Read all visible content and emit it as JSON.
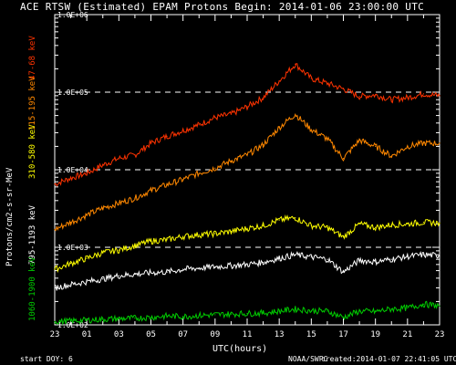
{
  "header": {
    "title": "ACE RTSW (Estimated) EPAM Protons    Begin: 2014-01-06 23:00:00 UTC"
  },
  "footer": {
    "start_doy": "start DOY:    6",
    "source": "NOAA/SWPC",
    "created": "created:2014-01-07 22:41:05 UTC"
  },
  "chart_data": {
    "type": "line",
    "ylabel": "Protons/cm2-s-sr-MeV",
    "xlabel": "UTC(hours)",
    "ylim": [
      100,
      1000000
    ],
    "yscale": "log",
    "yticks": [
      {
        "value": 100,
        "label": "1.0E+02"
      },
      {
        "value": 1000,
        "label": "1.0E+03"
      },
      {
        "value": 10000,
        "label": "1.0E+04"
      },
      {
        "value": 100000,
        "label": "1.0E+05"
      },
      {
        "value": 1000000,
        "label": "1.0E+06"
      }
    ],
    "xticks": [
      "23",
      "01",
      "03",
      "05",
      "07",
      "09",
      "11",
      "13",
      "15",
      "17",
      "19",
      "21",
      "23"
    ],
    "dashed_reference_levels": [
      100000,
      10000,
      1000
    ],
    "series": [
      {
        "name": "47-68 keV",
        "color": "#ff3300",
        "x": [
          0,
          1,
          2,
          3,
          4,
          5,
          6,
          7,
          8,
          9,
          10,
          11,
          12,
          13,
          14,
          15,
          16,
          17,
          18,
          19,
          20,
          21,
          22,
          23,
          24
        ],
        "values": [
          6500,
          7800,
          9000,
          11500,
          14000,
          15500,
          22000,
          27000,
          32000,
          38000,
          47000,
          52000,
          65000,
          85000,
          140000,
          230000,
          150000,
          130000,
          110000,
          88000,
          92000,
          80000,
          85000,
          95000,
          90000
        ]
      },
      {
        "name": "115-195 keV",
        "color": "#ff8800",
        "x": [
          0,
          1,
          2,
          3,
          4,
          5,
          6,
          7,
          8,
          9,
          10,
          11,
          12,
          13,
          14,
          15,
          16,
          17,
          18,
          19,
          20,
          21,
          22,
          23,
          24
        ],
        "values": [
          1700,
          2100,
          2600,
          3200,
          3700,
          4300,
          5400,
          6400,
          7500,
          9000,
          10500,
          13000,
          15500,
          21000,
          35000,
          52000,
          33000,
          25000,
          14000,
          24000,
          20000,
          15000,
          20000,
          22000,
          22000
        ]
      },
      {
        "name": "310-580 keV",
        "color": "#ffff00",
        "x": [
          0,
          1,
          2,
          3,
          4,
          5,
          6,
          7,
          8,
          9,
          10,
          11,
          12,
          13,
          14,
          15,
          16,
          17,
          18,
          19,
          20,
          21,
          22,
          23,
          24
        ],
        "values": [
          520,
          620,
          720,
          850,
          920,
          1050,
          1200,
          1250,
          1380,
          1450,
          1500,
          1600,
          1750,
          1900,
          2250,
          2400,
          1900,
          1800,
          1350,
          2000,
          1800,
          1950,
          2000,
          2100,
          2050
        ]
      },
      {
        "name": "795-1193 keV",
        "color": "#ffffff",
        "x": [
          0,
          1,
          2,
          3,
          4,
          5,
          6,
          7,
          8,
          9,
          10,
          11,
          12,
          13,
          14,
          15,
          16,
          17,
          18,
          19,
          20,
          21,
          22,
          23,
          24
        ],
        "values": [
          300,
          330,
          360,
          390,
          430,
          450,
          470,
          480,
          520,
          540,
          560,
          580,
          600,
          640,
          720,
          800,
          750,
          700,
          480,
          680,
          650,
          700,
          760,
          800,
          780
        ]
      },
      {
        "name": "1060-1900 keV",
        "color": "#00cc00",
        "x": [
          0,
          1,
          2,
          3,
          4,
          5,
          6,
          7,
          8,
          9,
          10,
          11,
          12,
          13,
          14,
          15,
          16,
          17,
          18,
          19,
          20,
          21,
          22,
          23,
          24
        ],
        "values": [
          110,
          112,
          115,
          118,
          120,
          122,
          125,
          130,
          128,
          132,
          135,
          138,
          140,
          142,
          150,
          160,
          152,
          150,
          125,
          150,
          148,
          160,
          165,
          185,
          175
        ]
      }
    ]
  }
}
